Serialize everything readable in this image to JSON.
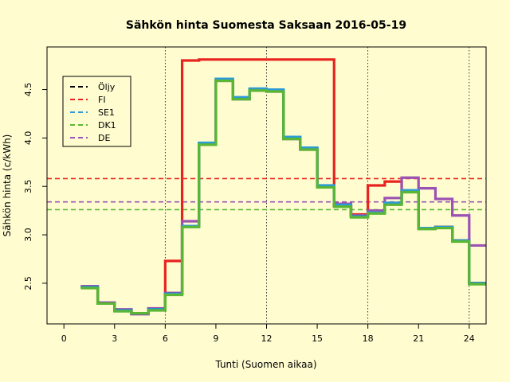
{
  "chart_data": {
    "type": "line",
    "title": "Sähkön hinta Suomesta Saksaan 2016-05-19",
    "xlabel": "Tunti (Suomen aikaa)",
    "ylabel": "Sähkön hinta (c/kWh)",
    "xlim": [
      -1,
      25
    ],
    "ylim": [
      2.08,
      4.94
    ],
    "x_ticks": [
      0,
      3,
      6,
      9,
      12,
      15,
      18,
      21,
      24
    ],
    "y_ticks": [
      2.5,
      3.0,
      3.5,
      4.0,
      4.5
    ],
    "vertical_reference_lines_x": [
      6,
      12,
      18,
      24
    ],
    "grid": false,
    "legend_position": "top-left",
    "step_style": "hourly step: value for hour h drawn from x=h to x=h+1",
    "hours": [
      1,
      2,
      3,
      4,
      5,
      6,
      7,
      8,
      9,
      10,
      11,
      12,
      13,
      14,
      15,
      16,
      17,
      18,
      19,
      20,
      21,
      22,
      23,
      24
    ],
    "series": [
      {
        "name": "Öljy",
        "color": "#000000",
        "values": [
          2.46,
          2.29,
          2.22,
          2.19,
          2.23,
          2.39,
          3.09,
          3.94,
          4.6,
          4.41,
          4.5,
          4.49,
          4.0,
          3.89,
          3.5,
          3.3,
          3.19,
          3.23,
          3.32,
          3.45,
          3.07,
          3.08,
          2.94,
          2.5
        ],
        "average": null
      },
      {
        "name": "FI",
        "color": "#e8231f",
        "values": [
          2.46,
          2.29,
          2.22,
          2.19,
          2.23,
          2.73,
          4.8,
          4.81,
          4.81,
          4.81,
          4.81,
          4.81,
          4.81,
          4.81,
          4.81,
          3.3,
          3.21,
          3.51,
          3.55,
          3.45,
          3.07,
          3.08,
          2.94,
          2.5
        ],
        "average": 3.58
      },
      {
        "name": "SE1",
        "color": "#2e9bd6",
        "values": [
          2.46,
          2.29,
          2.22,
          2.19,
          2.23,
          2.39,
          3.09,
          3.95,
          4.61,
          4.42,
          4.51,
          4.5,
          4.01,
          3.9,
          3.51,
          3.31,
          3.19,
          3.23,
          3.33,
          3.46,
          3.07,
          3.08,
          2.94,
          2.5
        ],
        "average": null
      },
      {
        "name": "DK1",
        "color": "#5bb733",
        "values": [
          2.45,
          2.29,
          2.21,
          2.19,
          2.22,
          2.38,
          3.08,
          3.93,
          4.59,
          4.4,
          4.49,
          4.48,
          3.99,
          3.88,
          3.49,
          3.29,
          3.18,
          3.22,
          3.31,
          3.44,
          3.06,
          3.07,
          2.93,
          2.49
        ],
        "average": 3.26
      },
      {
        "name": "DE",
        "color": "#9b52b3",
        "values": [
          2.47,
          2.3,
          2.23,
          2.18,
          2.24,
          2.4,
          3.14,
          3.93,
          4.59,
          4.4,
          4.49,
          4.48,
          3.99,
          3.88,
          3.49,
          3.32,
          3.2,
          3.25,
          3.38,
          3.59,
          3.48,
          3.37,
          3.2,
          2.89
        ],
        "average": 3.34
      }
    ]
  }
}
